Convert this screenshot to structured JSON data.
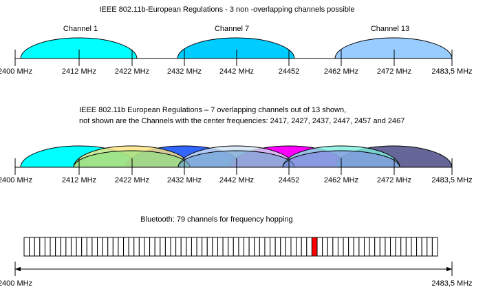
{
  "section1": {
    "title": "IEEE 802.11b-European Regulations -  3 non -overlapping channels possible",
    "channels": [
      "Channel 1",
      "Channel 7",
      "Channel 13"
    ],
    "axis_labels": [
      "2400 MHz",
      "2412 MHz",
      "2422 MHz",
      "2432 MHz",
      "2442 MHz",
      "24452",
      "2462 MHz",
      "2472 MHz",
      "2483,5 MHz"
    ]
  },
  "section2": {
    "lines": [
      "IEEE 802.11b European Regulations – 7 overlapping channels out of 13 shown,",
      "not shown are the Channels with the center frequencies: 2417, 2427, 2437, 2447, 2457 and  2467"
    ],
    "axis_labels": [
      "2400 MHz",
      "2412 MHz",
      "2422 MHz",
      "2432 MHz",
      "2442 MHz",
      "24452",
      "2462 MHz",
      "2472 MHz",
      "2483,5 MHz"
    ]
  },
  "section3": {
    "title": "Bluetooth: 79 channels for frequency hopping",
    "axis_labels": [
      "2400 MHz",
      "2483,5 MHz"
    ]
  }
}
